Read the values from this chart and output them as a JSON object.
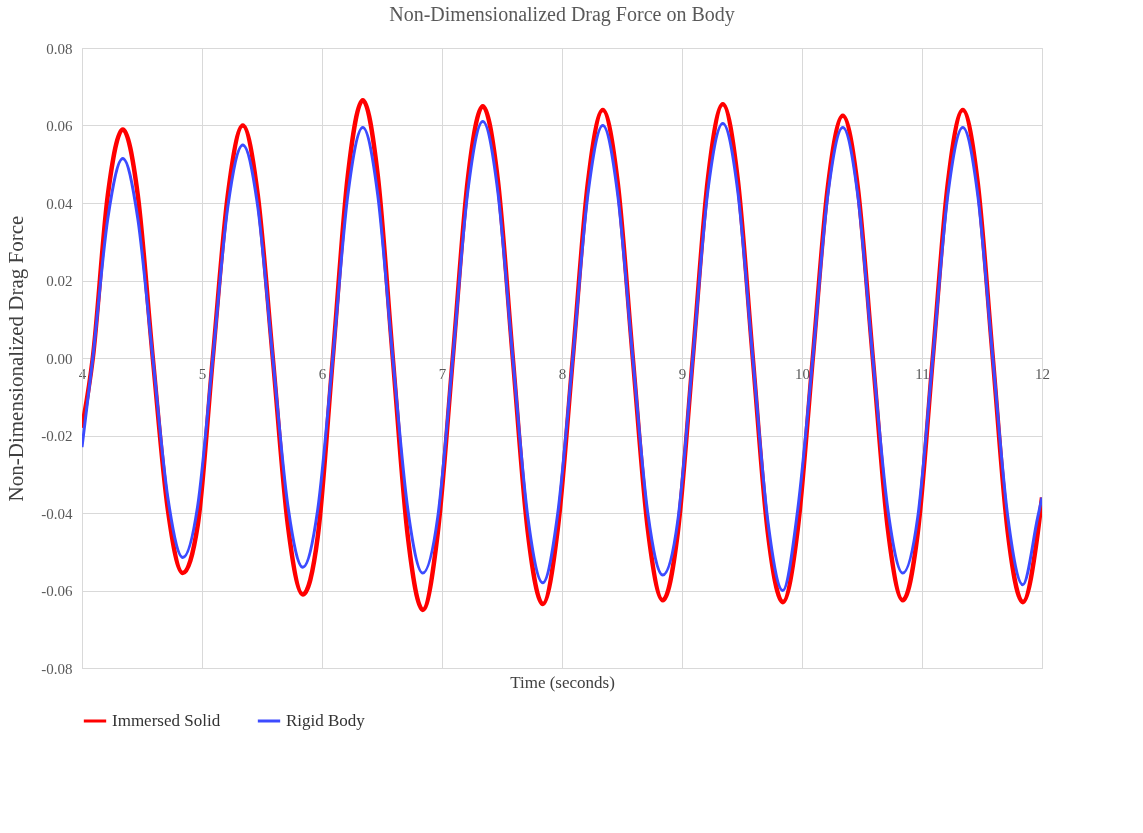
{
  "chart_data": {
    "type": "line",
    "title": "Non-Dimensionalized Drag Force on Body",
    "xlabel": "Time (seconds)",
    "ylabel": "Non-Dimensionalized Drag Force",
    "x": [
      4.0,
      4.09,
      4.215,
      4.34,
      4.465,
      4.59,
      4.715,
      4.84,
      4.965,
      5.09,
      5.215,
      5.34,
      5.465,
      5.59,
      5.715,
      5.84,
      5.965,
      6.09,
      6.215,
      6.34,
      6.465,
      6.59,
      6.715,
      6.84,
      6.965,
      7.09,
      7.215,
      7.34,
      7.465,
      7.59,
      7.715,
      7.84,
      7.965,
      8.09,
      8.215,
      8.34,
      8.465,
      8.59,
      8.715,
      8.84,
      8.965,
      9.09,
      9.215,
      9.34,
      9.465,
      9.59,
      9.715,
      9.84,
      9.965,
      10.09,
      10.215,
      10.34,
      10.465,
      10.59,
      10.715,
      10.84,
      10.965,
      11.09,
      11.215,
      11.34,
      11.465,
      11.59,
      11.715,
      11.84,
      11.965,
      12.0
    ],
    "series": [
      {
        "name": "Immersed Solid",
        "color": "#ff0000",
        "values": [
          -0.018,
          0,
          0.042,
          0.059,
          0.042,
          0,
          -0.039,
          -0.0555,
          -0.043,
          0,
          0.042,
          0.06,
          0.042,
          0,
          -0.043,
          -0.061,
          -0.046,
          0,
          0.047,
          0.0665,
          0.047,
          0,
          -0.046,
          -0.065,
          -0.045,
          0,
          0.046,
          0.065,
          0.046,
          0,
          -0.045,
          -0.0635,
          -0.044,
          0,
          0.045,
          0.064,
          0.045,
          0,
          -0.044,
          -0.0625,
          -0.045,
          0,
          0.046,
          0.0655,
          0.046,
          0,
          -0.045,
          -0.063,
          -0.044,
          0,
          0.044,
          0.0625,
          0.044,
          0,
          -0.044,
          -0.0625,
          -0.045,
          0,
          0.045,
          0.064,
          0.045,
          0,
          -0.045,
          -0.063,
          -0.045,
          -0.036
        ]
      },
      {
        "name": "Rigid Body",
        "color": "#3c4bff",
        "values": [
          -0.023,
          0,
          0.036,
          0.0515,
          0.036,
          0,
          -0.036,
          -0.0515,
          -0.038,
          0,
          0.039,
          0.055,
          0.039,
          0,
          -0.038,
          -0.054,
          -0.039,
          0,
          0.042,
          0.0595,
          0.042,
          0,
          -0.039,
          -0.0555,
          -0.041,
          0,
          0.043,
          0.061,
          0.043,
          0,
          -0.041,
          -0.058,
          -0.04,
          0,
          0.042,
          0.06,
          0.042,
          0,
          -0.04,
          -0.056,
          -0.042,
          0,
          0.043,
          0.0605,
          0.043,
          0,
          -0.042,
          -0.06,
          -0.039,
          0,
          0.042,
          0.0595,
          0.042,
          0,
          -0.039,
          -0.0555,
          -0.041,
          0,
          0.042,
          0.0595,
          0.042,
          0,
          -0.041,
          -0.0585,
          -0.041,
          -0.036
        ]
      }
    ],
    "xlim": [
      4,
      12
    ],
    "xticks": [
      4,
      5,
      6,
      7,
      8,
      9,
      10,
      11,
      12
    ],
    "ylim": [
      -0.08,
      0.08
    ],
    "yticks": [
      -0.08,
      -0.06,
      -0.04,
      -0.02,
      {
        "value": 0,
        "label": "0.00"
      },
      0.02,
      0.04,
      0.06,
      0.08
    ],
    "grid": true,
    "legend": "bottom"
  }
}
